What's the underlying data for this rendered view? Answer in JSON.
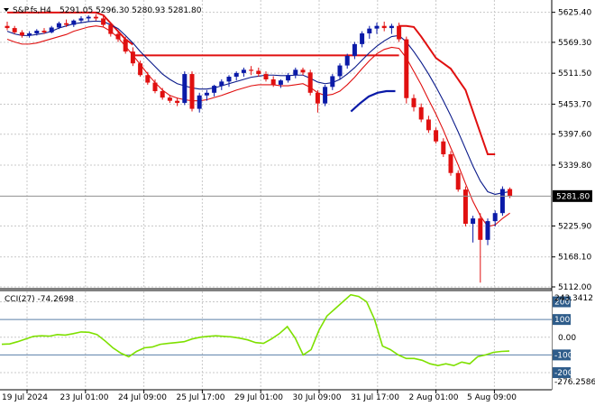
{
  "header": {
    "symbol_info": "S&P.fs,H4",
    "ohlc": "5291.05 5296.30 5280.93 5281.80",
    "menu_icon": "triangle-down-icon"
  },
  "price_axis": {
    "ticks": [
      "5625.40",
      "5569.30",
      "5511.50",
      "5453.70",
      "5397.60",
      "5339.80",
      "5225.90",
      "5168.10",
      "5112.00"
    ],
    "tick_values": [
      5625.4,
      5569.3,
      5511.5,
      5453.7,
      5397.6,
      5339.8,
      5225.9,
      5168.1,
      5112.0
    ],
    "current_price": "5281.80",
    "current_value": 5281.8
  },
  "cci": {
    "label": "CCI(27) -74.2698",
    "max_label": "243.3412",
    "min_label": "-276.2586",
    "ticks": [
      "200",
      "100",
      "0.00",
      "-100",
      "-200"
    ],
    "tick_values": [
      200,
      100,
      0,
      -100,
      -200
    ],
    "boxed": [
      true,
      true,
      false,
      true,
      true
    ],
    "current": -74.2698,
    "range": [
      -276.2586,
      243.3412
    ],
    "values": [
      -40,
      -38,
      -25,
      -10,
      5,
      8,
      6,
      15,
      12,
      20,
      30,
      28,
      15,
      -20,
      -60,
      -90,
      -110,
      -80,
      -60,
      -55,
      -40,
      -35,
      -30,
      -25,
      -10,
      0,
      5,
      8,
      5,
      2,
      -5,
      -15,
      -30,
      -35,
      -10,
      20,
      60,
      -5,
      -100,
      -70,
      40,
      120,
      160,
      200,
      240,
      230,
      200,
      100,
      -50,
      -70,
      -100,
      -120,
      -120,
      -130,
      -150,
      -160,
      -150,
      -160,
      -140,
      -150,
      -110,
      -100,
      -85,
      -80,
      -78
    ]
  },
  "time_axis": {
    "labels": [
      "19 Jul 2024",
      "23 Jul 01:00",
      "24 Jul 09:00",
      "25 Jul 17:00",
      "29 Jul 01:00",
      "30 Jul 09:00",
      "31 Jul 17:00",
      "2 Aug 01:00",
      "5 Aug 09:00"
    ]
  },
  "colors": {
    "bull": "#0a1aa8",
    "bear": "#e01010",
    "ma_dark": "#0a1a8a",
    "ma_red": "#e01010",
    "cci_line": "#7ee000",
    "grid": "#c8c8c8",
    "level_line": "#5a7fa8"
  },
  "chart_data": {
    "type": "candlestick",
    "price_range": [
      5112.0,
      5640.0
    ],
    "candles": [
      [
        5600,
        5608,
        5592,
        5596
      ],
      [
        5596,
        5600,
        5585,
        5588
      ],
      [
        5588,
        5592,
        5578,
        5582
      ],
      [
        5582,
        5590,
        5578,
        5586
      ],
      [
        5586,
        5594,
        5582,
        5591
      ],
      [
        5591,
        5596,
        5585,
        5588
      ],
      [
        5588,
        5600,
        5586,
        5597
      ],
      [
        5597,
        5608,
        5594,
        5605
      ],
      [
        5605,
        5612,
        5598,
        5602
      ],
      [
        5602,
        5612,
        5598,
        5610
      ],
      [
        5610,
        5618,
        5605,
        5614
      ],
      [
        5614,
        5620,
        5608,
        5617
      ],
      [
        5617,
        5622,
        5610,
        5614
      ],
      [
        5614,
        5618,
        5598,
        5602
      ],
      [
        5602,
        5606,
        5580,
        5585
      ],
      [
        5585,
        5590,
        5570,
        5575
      ],
      [
        5575,
        5580,
        5548,
        5552
      ],
      [
        5552,
        5560,
        5525,
        5530
      ],
      [
        5530,
        5535,
        5505,
        5508
      ],
      [
        5508,
        5514,
        5490,
        5494
      ],
      [
        5494,
        5500,
        5474,
        5478
      ],
      [
        5478,
        5484,
        5462,
        5466
      ],
      [
        5466,
        5470,
        5456,
        5460
      ],
      [
        5460,
        5466,
        5450,
        5456
      ],
      [
        5456,
        5515,
        5452,
        5510
      ],
      [
        5510,
        5515,
        5440,
        5445
      ],
      [
        5445,
        5475,
        5438,
        5470
      ],
      [
        5470,
        5480,
        5460,
        5475
      ],
      [
        5475,
        5490,
        5468,
        5488
      ],
      [
        5488,
        5500,
        5480,
        5496
      ],
      [
        5496,
        5508,
        5486,
        5505
      ],
      [
        5505,
        5515,
        5498,
        5512
      ],
      [
        5512,
        5522,
        5505,
        5518
      ],
      [
        5518,
        5525,
        5508,
        5516
      ],
      [
        5516,
        5522,
        5505,
        5510
      ],
      [
        5510,
        5515,
        5496,
        5500
      ],
      [
        5500,
        5506,
        5486,
        5490
      ],
      [
        5490,
        5500,
        5484,
        5498
      ],
      [
        5498,
        5512,
        5494,
        5508
      ],
      [
        5508,
        5522,
        5502,
        5518
      ],
      [
        5518,
        5522,
        5508,
        5513
      ],
      [
        5513,
        5518,
        5470,
        5475
      ],
      [
        5475,
        5480,
        5438,
        5455
      ],
      [
        5455,
        5490,
        5450,
        5486
      ],
      [
        5486,
        5510,
        5480,
        5506
      ],
      [
        5506,
        5530,
        5500,
        5526
      ],
      [
        5526,
        5548,
        5520,
        5544
      ],
      [
        5544,
        5570,
        5538,
        5566
      ],
      [
        5566,
        5590,
        5560,
        5586
      ],
      [
        5586,
        5600,
        5576,
        5595
      ],
      [
        5595,
        5606,
        5585,
        5600
      ],
      [
        5600,
        5608,
        5590,
        5596
      ],
      [
        5596,
        5604,
        5585,
        5600
      ],
      [
        5600,
        5606,
        5570,
        5575
      ],
      [
        5575,
        5580,
        5455,
        5465
      ],
      [
        5465,
        5472,
        5440,
        5448
      ],
      [
        5448,
        5455,
        5420,
        5425
      ],
      [
        5425,
        5432,
        5400,
        5405
      ],
      [
        5405,
        5410,
        5380,
        5384
      ],
      [
        5384,
        5390,
        5355,
        5360
      ],
      [
        5360,
        5366,
        5320,
        5325
      ],
      [
        5325,
        5330,
        5290,
        5294
      ],
      [
        5294,
        5300,
        5225,
        5230
      ],
      [
        5230,
        5245,
        5195,
        5240
      ],
      [
        5240,
        5250,
        5120,
        5200
      ],
      [
        5200,
        5240,
        5190,
        5235
      ],
      [
        5235,
        5255,
        5225,
        5250
      ],
      [
        5250,
        5300,
        5245,
        5295
      ],
      [
        5295,
        5298,
        5278,
        5282
      ]
    ],
    "ma_dark": [
      5590,
      5585,
      5582,
      5582,
      5584,
      5586,
      5590,
      5596,
      5600,
      5604,
      5606,
      5608,
      5609,
      5608,
      5602,
      5595,
      5582,
      5568,
      5552,
      5538,
      5524,
      5510,
      5500,
      5492,
      5488,
      5484,
      5482,
      5482,
      5484,
      5488,
      5492,
      5496,
      5500,
      5504,
      5506,
      5508,
      5508,
      5507,
      5507,
      5508,
      5508,
      5502,
      5495,
      5492,
      5494,
      5500,
      5510,
      5522,
      5536,
      5550,
      5562,
      5572,
      5580,
      5582,
      5570,
      5552,
      5532,
      5510,
      5486,
      5460,
      5432,
      5402,
      5370,
      5338,
      5310,
      5290,
      5285,
      5288,
      5290
    ],
    "ma_red_lower": [
      5575,
      5570,
      5566,
      5566,
      5568,
      5572,
      5576,
      5580,
      5584,
      5590,
      5594,
      5598,
      5600,
      5598,
      5590,
      5578,
      5562,
      5545,
      5528,
      5510,
      5494,
      5480,
      5470,
      5465,
      5462,
      5460,
      5460,
      5462,
      5466,
      5470,
      5475,
      5480,
      5484,
      5488,
      5490,
      5490,
      5490,
      5488,
      5488,
      5490,
      5492,
      5485,
      5475,
      5470,
      5472,
      5478,
      5490,
      5504,
      5520,
      5535,
      5548,
      5556,
      5560,
      5558,
      5540,
      5515,
      5490,
      5462,
      5435,
      5405,
      5372,
      5340,
      5305,
      5272,
      5245,
      5225,
      5228,
      5240,
      5250
    ],
    "resistance_segments": [
      {
        "from": 0,
        "to": 17,
        "values": [
          5625,
          5625,
          5625,
          5625,
          5625,
          5625,
          5625,
          5625,
          5625,
          5625,
          5625,
          5625,
          5625,
          5620,
          5605,
          5590,
          5575,
          5565
        ]
      },
      {
        "from": 17,
        "to": 53,
        "values": [
          5545
        ]
      },
      {
        "from": 53,
        "to": 66,
        "values": [
          5600,
          5600,
          5598,
          5580,
          5560,
          5540,
          5530,
          5520,
          5500,
          5480,
          5440,
          5400,
          5360,
          5360
        ]
      }
    ],
    "blue_arc": [
      5440,
      5455,
      5468,
      5475,
      5478,
      5478
    ]
  }
}
